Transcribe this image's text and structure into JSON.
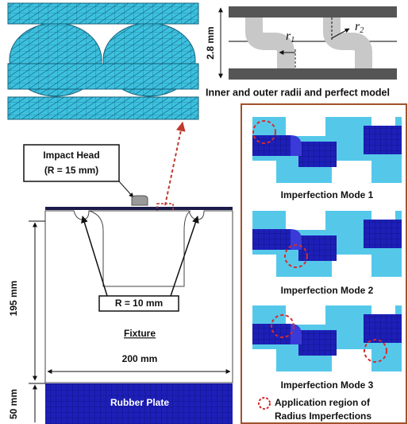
{
  "perfect_model": {
    "thickness_label": "2.8 mm",
    "r1": {
      "symbol": "r",
      "subscript": "1"
    },
    "r2": {
      "symbol": "r",
      "subscript": "2"
    },
    "caption": "Inner and outer radii and perfect model"
  },
  "setup": {
    "impact_head": [
      "Impact Head",
      "(R = 15 mm)"
    ],
    "fixture_radius": "R = 10 mm",
    "height": "195 mm",
    "fixture": "Fixture",
    "width": "200 mm",
    "rubber_height": "50 mm",
    "rubber_plate": "Rubber Plate"
  },
  "imperfection_modes": [
    "Imperfection Mode 1",
    "Imperfection Mode 2",
    "Imperfection Mode 3"
  ],
  "legend": [
    "Application region of",
    "Radius Imperfections"
  ]
}
